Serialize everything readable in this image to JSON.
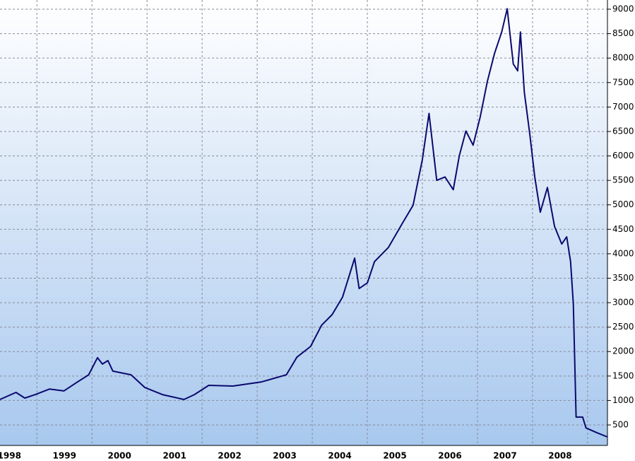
{
  "chart_data": {
    "type": "line",
    "x": [
      1998.33,
      1998.62,
      1998.78,
      1998.97,
      1999.23,
      1999.49,
      1999.74,
      1999.94,
      2000.1,
      2000.19,
      2000.29,
      2000.38,
      2000.71,
      2000.96,
      2001.28,
      2001.67,
      2001.86,
      2002.12,
      2002.56,
      2003.08,
      2003.53,
      2003.72,
      2003.97,
      2004.17,
      2004.36,
      2004.55,
      2004.77,
      2004.85,
      2005.0,
      2005.13,
      2005.38,
      2005.64,
      2005.83,
      2006.0,
      2006.12,
      2006.26,
      2006.41,
      2006.56,
      2006.67,
      2006.79,
      2006.92,
      2007.05,
      2007.18,
      2007.31,
      2007.44,
      2007.54,
      2007.65,
      2007.73,
      2007.78,
      2007.85,
      2007.95,
      2008.04,
      2008.14,
      2008.27,
      2008.4,
      2008.53,
      2008.62,
      2008.69,
      2008.74,
      2008.79,
      2008.91,
      2008.97,
      2009.17,
      2009.36
    ],
    "series": [
      {
        "color": "#0a0a6e",
        "values": [
          1020,
          1165,
          1050,
          1120,
          1235,
          1195,
          1380,
          1525,
          1875,
          1745,
          1815,
          1600,
          1525,
          1265,
          1120,
          1020,
          1120,
          1310,
          1295,
          1380,
          1525,
          1885,
          2105,
          2540,
          2755,
          3115,
          3910,
          3290,
          3405,
          3840,
          4125,
          4630,
          4990,
          5930,
          6870,
          5500,
          5570,
          5310,
          6005,
          6510,
          6220,
          6800,
          7525,
          8100,
          8535,
          9010,
          7880,
          7740,
          8535,
          7305,
          6440,
          5570,
          4850,
          5355,
          4560,
          4200,
          4345,
          3840,
          2970,
          660,
          660,
          440,
          340,
          255
        ]
      }
    ],
    "xlim": [
      1998.33,
      2009.36
    ],
    "xticks": [
      {
        "value": 1998.5,
        "label": "1998"
      },
      {
        "value": 1999.5,
        "label": "1999"
      },
      {
        "value": 2000.5,
        "label": "2000"
      },
      {
        "value": 2001.5,
        "label": "2001"
      },
      {
        "value": 2002.5,
        "label": "2002"
      },
      {
        "value": 2003.5,
        "label": "2003"
      },
      {
        "value": 2004.5,
        "label": "2004"
      },
      {
        "value": 2005.5,
        "label": "2005"
      },
      {
        "value": 2006.5,
        "label": "2006"
      },
      {
        "value": 2007.5,
        "label": "2007"
      },
      {
        "value": 2008.5,
        "label": "2008"
      }
    ],
    "xgrid": [
      1999,
      2000,
      2001,
      2002,
      2003,
      2004,
      2005,
      2006,
      2007,
      2008,
      2009
    ],
    "ylim": [
      81,
      9188
    ],
    "yticks": [
      500,
      1000,
      1500,
      2000,
      2500,
      3000,
      3500,
      4000,
      4500,
      5000,
      5500,
      6000,
      6500,
      7000,
      7500,
      8000,
      8500,
      9000
    ],
    "grid": true
  }
}
